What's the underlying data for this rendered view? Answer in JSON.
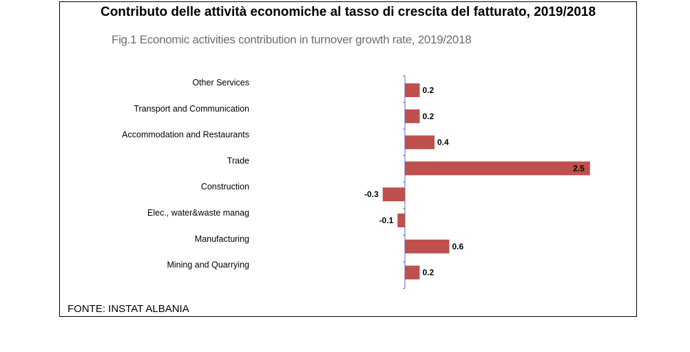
{
  "page": {
    "title": "Contributo delle attività economiche al tasso di crescita del fatturato, 2019/2018",
    "source": "FONTE: INSTAT ALBANIA"
  },
  "chart_data": {
    "type": "bar",
    "orientation": "horizontal",
    "title": "Fig.1 Economic activities contribution in turnover growth rate, 2019/2018",
    "categories": [
      "Other Services",
      "Transport and Communication",
      "Accommodation and Restaurants",
      "Trade",
      "Construction",
      "Elec., water&waste manag",
      "Manufacturing",
      "Mining and Quarrying"
    ],
    "values": [
      0.2,
      0.2,
      0.4,
      2.5,
      -0.3,
      -0.1,
      0.6,
      0.2
    ],
    "value_labels": [
      "0.2",
      "0.2",
      "0.4",
      "2.5",
      "-0.3",
      "-0.1",
      "0.6",
      "0.2"
    ],
    "bar_color": "#c0504d",
    "xlim": [
      -0.3,
      2.5
    ],
    "grid": false,
    "legend": "none"
  }
}
